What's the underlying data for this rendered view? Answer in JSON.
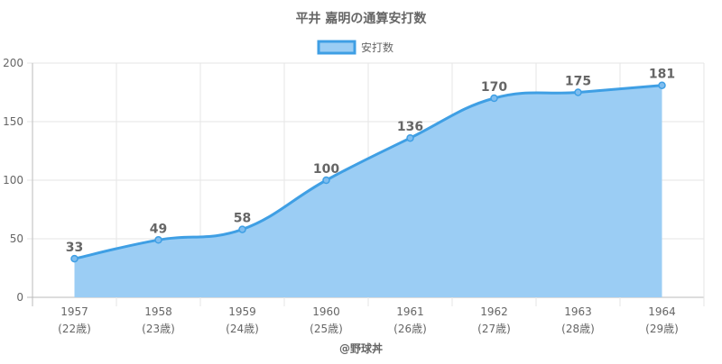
{
  "chart_data": {
    "type": "area",
    "title": "平井 嘉明の通算安打数",
    "legend": {
      "label": "安打数",
      "placement": "top-center"
    },
    "x": [
      "1957",
      "1958",
      "1959",
      "1960",
      "1961",
      "1962",
      "1963",
      "1964"
    ],
    "x_sublabels": [
      "(22歳)",
      "(23歳)",
      "(24歳)",
      "(25歳)",
      "(26歳)",
      "(27歳)",
      "(28歳)",
      "(29歳)"
    ],
    "series": [
      {
        "name": "安打数",
        "values": [
          33,
          49,
          58,
          100,
          136,
          170,
          175,
          181
        ]
      }
    ],
    "ylim": [
      0,
      200
    ],
    "yticks": [
      0,
      50,
      100,
      150,
      200
    ],
    "grid": true,
    "xlabel": "",
    "ylabel": "",
    "footer": "@野球丼",
    "colors": {
      "line": "#3f9fe4",
      "fill": "#9bcdf4",
      "grid": "#e6e6e6",
      "label": "#666666"
    }
  }
}
